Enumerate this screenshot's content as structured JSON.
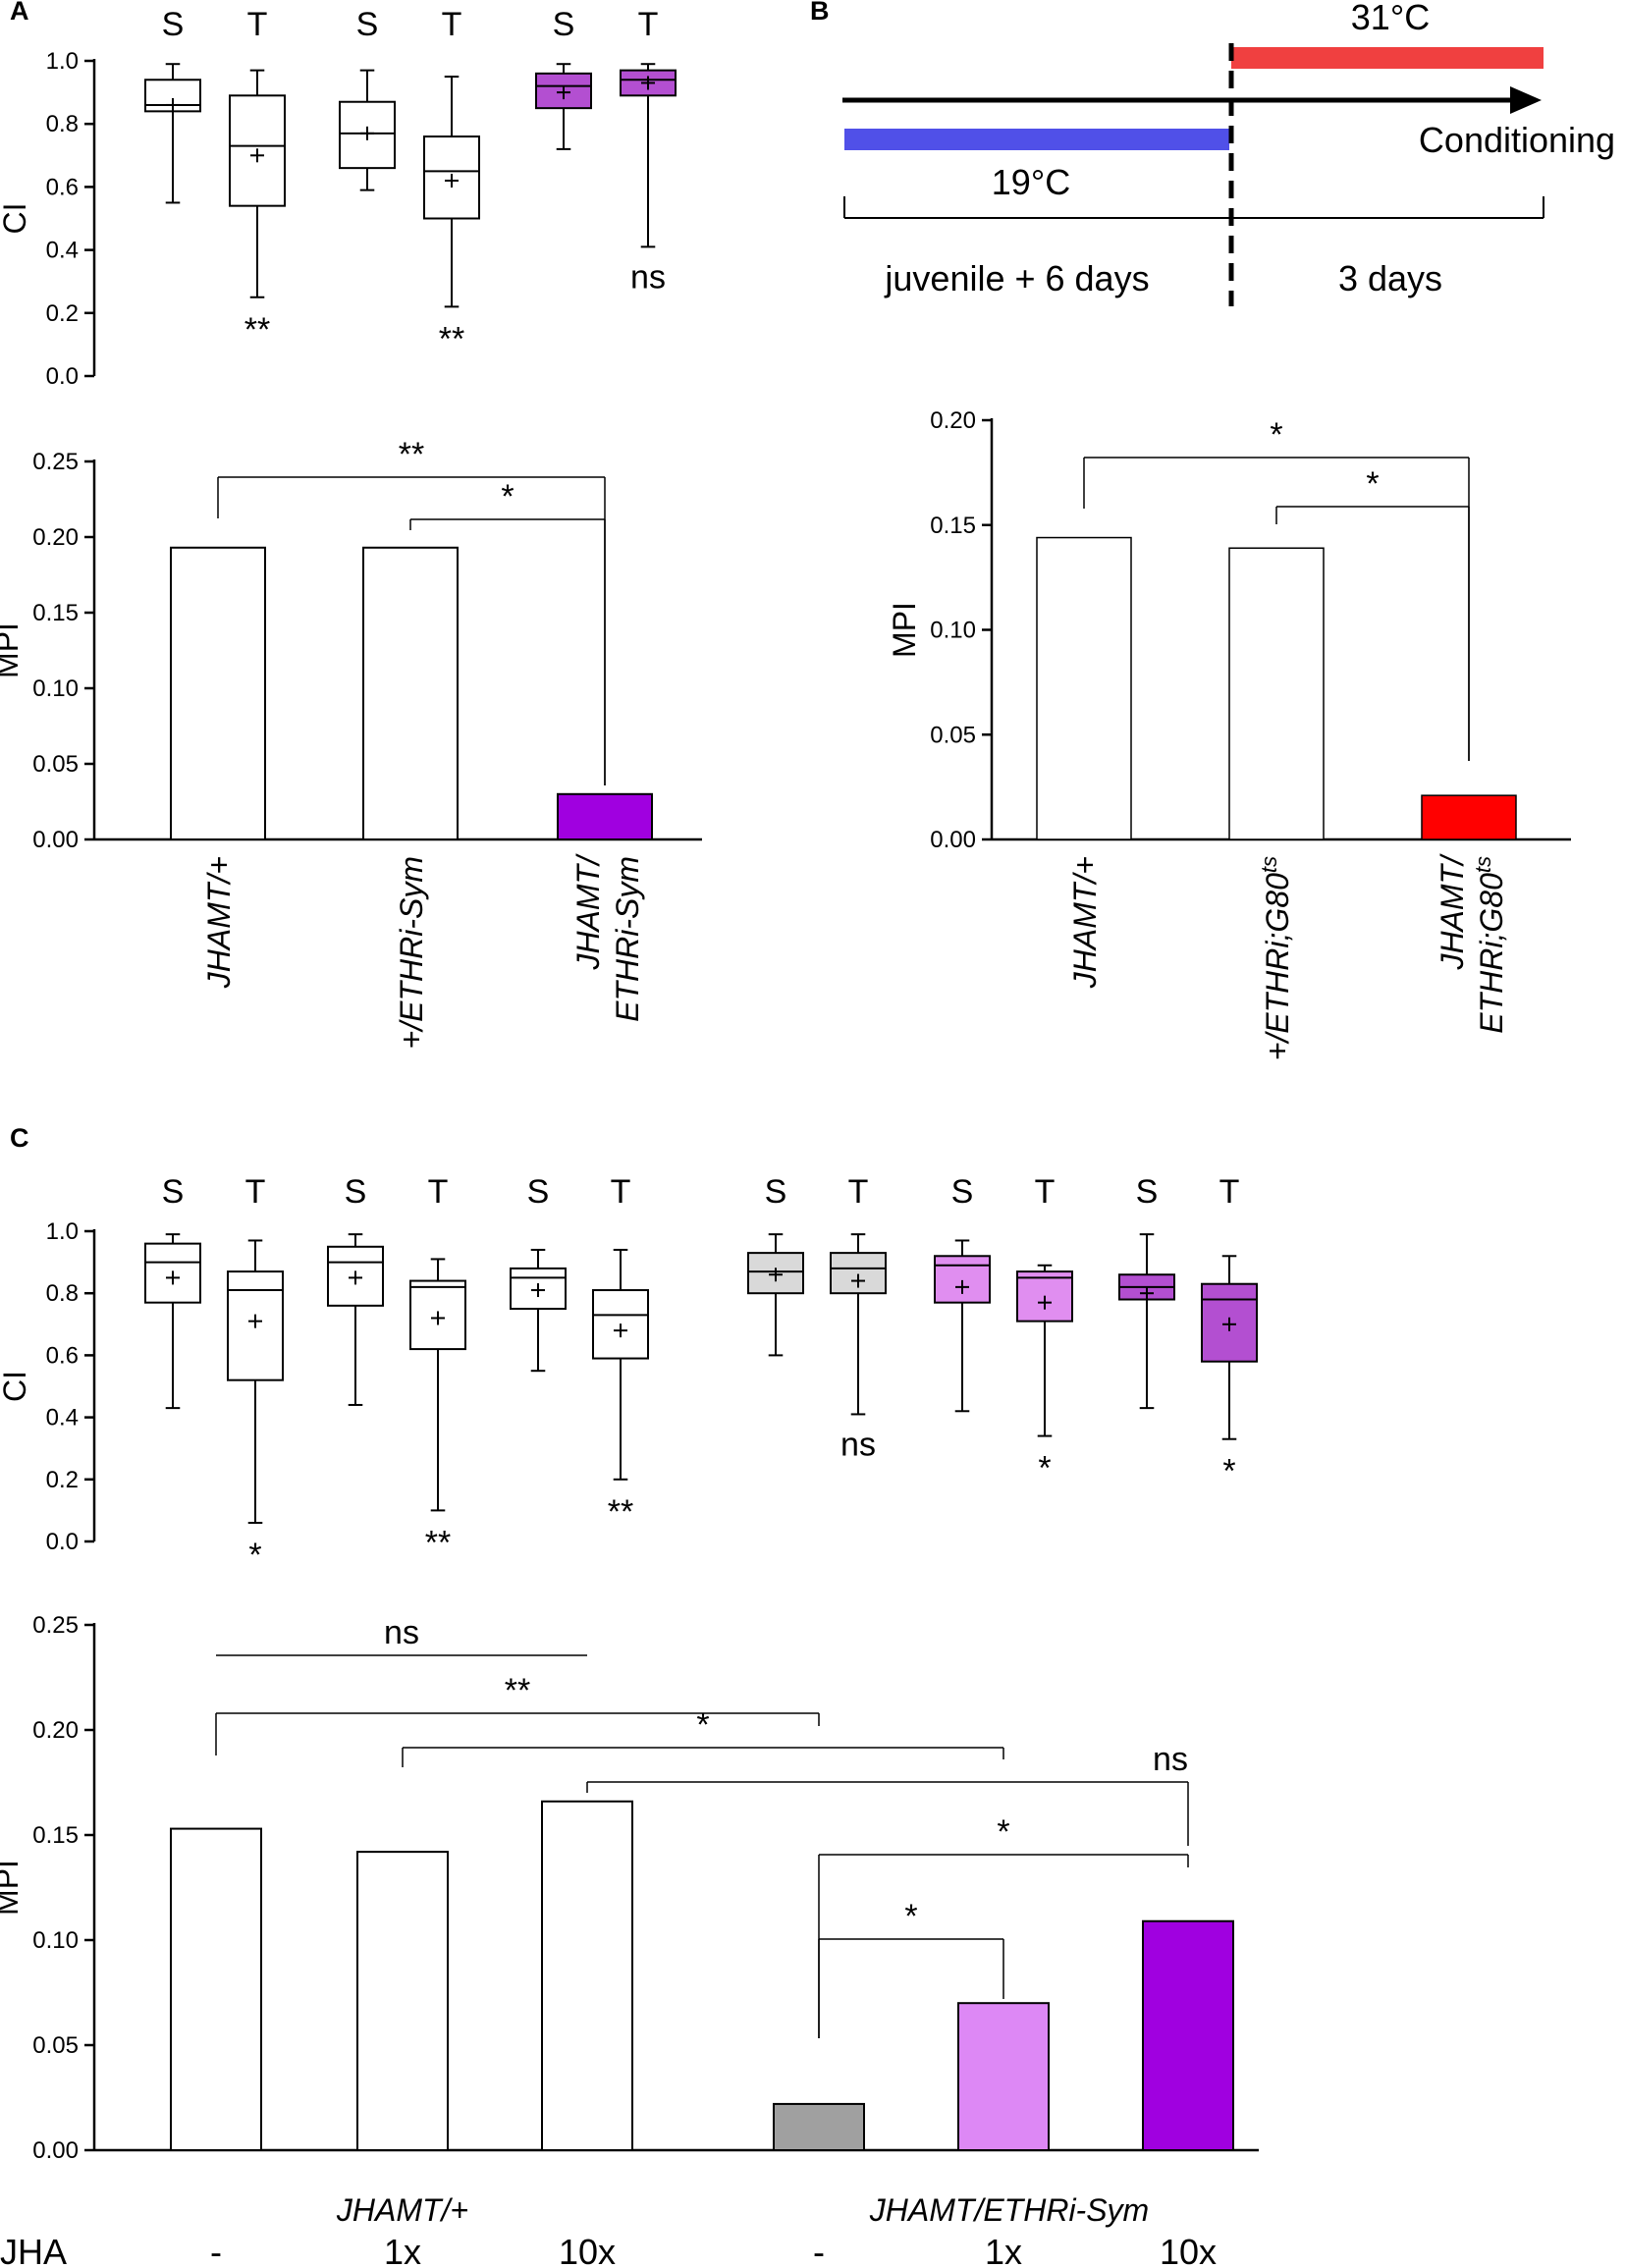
{
  "chart_data": [
    {
      "panel": "A",
      "type": "box",
      "ylabel": "CI",
      "ylim": [
        0,
        1
      ],
      "yticks": [
        "0.0",
        "0.2",
        "0.4",
        "0.6",
        "0.8",
        "1.0"
      ],
      "groups": [
        {
          "name": "JHAMT/+",
          "color": "#ffffff",
          "sig": "**",
          "S": {
            "label": "S",
            "min": 0.55,
            "q1": 0.84,
            "median": 0.86,
            "q3": 0.94,
            "max": 0.99,
            "mean": 0.86
          },
          "T": {
            "label": "T",
            "min": 0.25,
            "q1": 0.54,
            "median": 0.73,
            "q3": 0.89,
            "max": 0.97,
            "mean": 0.7
          }
        },
        {
          "name": "+/ETHRi-Sym",
          "color": "#ffffff",
          "sig": "**",
          "S": {
            "label": "S",
            "min": 0.59,
            "q1": 0.66,
            "median": 0.77,
            "q3": 0.87,
            "max": 0.97,
            "mean": 0.77
          },
          "T": {
            "label": "T",
            "min": 0.22,
            "q1": 0.5,
            "median": 0.65,
            "q3": 0.76,
            "max": 0.95,
            "mean": 0.62
          }
        },
        {
          "name": "JHAMT/ETHRi-Sym",
          "color": "#b34fd1",
          "sig": "ns",
          "S": {
            "label": "S",
            "min": 0.72,
            "q1": 0.85,
            "median": 0.92,
            "q3": 0.96,
            "max": 0.99,
            "mean": 0.9
          },
          "T": {
            "label": "T",
            "min": 0.41,
            "q1": 0.89,
            "median": 0.94,
            "q3": 0.97,
            "max": 0.99,
            "mean": 0.93
          }
        }
      ]
    },
    {
      "panel": "A",
      "type": "bar",
      "ylabel": "MPI",
      "ylim": [
        0,
        0.25
      ],
      "yticks": [
        "0.00",
        "0.05",
        "0.10",
        "0.15",
        "0.20",
        "0.25"
      ],
      "categories": [
        "JHAMT/+",
        "+/ETHRi-Sym",
        "JHAMT/ ETHRi-Sym"
      ],
      "values": [
        0.193,
        0.193,
        0.03
      ],
      "colors": [
        "#ffffff",
        "#ffffff",
        "#a000e0"
      ],
      "brackets": [
        {
          "from": 0,
          "to": 2,
          "label": "**"
        },
        {
          "from": 1,
          "to": 2,
          "label": "*"
        }
      ]
    },
    {
      "panel": "B",
      "type": "timeline",
      "phase1_temp": "19°C",
      "phase2_temp": "31°C",
      "arrow_label": "Conditioning",
      "phase1_duration": "juvenile + 6 days",
      "phase2_duration": "3 days",
      "phase1_color": "#5050e8",
      "phase2_color": "#f04040"
    },
    {
      "panel": "B",
      "type": "bar",
      "ylabel": "MPI",
      "ylim": [
        0,
        0.2
      ],
      "yticks": [
        "0.00",
        "0.05",
        "0.10",
        "0.15",
        "0.20"
      ],
      "categories": [
        "JHAMT/+",
        "+/ETHRi;G80ts",
        "JHAMT/ ETHRi;G80ts"
      ],
      "values": [
        0.144,
        0.139,
        0.021
      ],
      "colors": [
        "#ffffff",
        "#ffffff",
        "#ff0000"
      ],
      "brackets": [
        {
          "from": 0,
          "to": 2,
          "label": "*"
        },
        {
          "from": 1,
          "to": 2,
          "label": "*"
        }
      ]
    },
    {
      "panel": "C",
      "type": "box",
      "ylabel": "CI",
      "ylim": [
        0,
        1
      ],
      "yticks": [
        "0.0",
        "0.2",
        "0.4",
        "0.6",
        "0.8",
        "1.0"
      ],
      "groups": [
        {
          "name": "JHAMT/+ -",
          "color": "#ffffff",
          "sig": "*",
          "S": {
            "label": "S",
            "min": 0.43,
            "q1": 0.77,
            "median": 0.9,
            "q3": 0.96,
            "max": 0.99,
            "mean": 0.85
          },
          "T": {
            "label": "T",
            "min": 0.06,
            "q1": 0.52,
            "median": 0.81,
            "q3": 0.87,
            "max": 0.97,
            "mean": 0.71
          }
        },
        {
          "name": "JHAMT/+ 1x",
          "color": "#ffffff",
          "sig": "**",
          "S": {
            "label": "S",
            "min": 0.44,
            "q1": 0.76,
            "median": 0.9,
            "q3": 0.95,
            "max": 0.99,
            "mean": 0.85
          },
          "T": {
            "label": "T",
            "min": 0.1,
            "q1": 0.62,
            "median": 0.82,
            "q3": 0.84,
            "max": 0.91,
            "mean": 0.72
          }
        },
        {
          "name": "JHAMT/+ 10x",
          "color": "#ffffff",
          "sig": "**",
          "S": {
            "label": "S",
            "min": 0.55,
            "q1": 0.75,
            "median": 0.85,
            "q3": 0.88,
            "max": 0.94,
            "mean": 0.81
          },
          "T": {
            "label": "T",
            "min": 0.2,
            "q1": 0.59,
            "median": 0.73,
            "q3": 0.81,
            "max": 0.94,
            "mean": 0.68
          }
        },
        {
          "name": "JHAMT/ETHRi-Sym -",
          "color": "#d9d9d9",
          "sig": "ns",
          "S": {
            "label": "S",
            "min": 0.6,
            "q1": 0.8,
            "median": 0.87,
            "q3": 0.93,
            "max": 0.99,
            "mean": 0.86
          },
          "T": {
            "label": "T",
            "min": 0.41,
            "q1": 0.8,
            "median": 0.88,
            "q3": 0.93,
            "max": 0.99,
            "mean": 0.84
          }
        },
        {
          "name": "JHAMT/ETHRi-Sym 1x",
          "color": "#e08ef0",
          "sig": "*",
          "S": {
            "label": "S",
            "min": 0.42,
            "q1": 0.77,
            "median": 0.89,
            "q3": 0.92,
            "max": 0.97,
            "mean": 0.82
          },
          "T": {
            "label": "T",
            "min": 0.34,
            "q1": 0.71,
            "median": 0.85,
            "q3": 0.87,
            "max": 0.89,
            "mean": 0.77
          }
        },
        {
          "name": "JHAMT/ETHRi-Sym 10x",
          "color": "#b34fd1",
          "sig": "*",
          "S": {
            "label": "S",
            "min": 0.43,
            "q1": 0.78,
            "median": 0.82,
            "q3": 0.86,
            "max": 0.99,
            "mean": 0.8
          },
          "T": {
            "label": "T",
            "min": 0.33,
            "q1": 0.58,
            "median": 0.78,
            "q3": 0.83,
            "max": 0.92,
            "mean": 0.7
          }
        }
      ]
    },
    {
      "panel": "C",
      "type": "bar",
      "ylabel": "MPI",
      "ylim": [
        0,
        0.25
      ],
      "yticks": [
        "0.00",
        "0.05",
        "0.10",
        "0.15",
        "0.20",
        "0.25"
      ],
      "categories": [
        "JHAMT/+ -",
        "JHAMT/+ 1x",
        "JHAMT/+ 10x",
        "JHAMT/ETHRi-Sym -",
        "JHAMT/ETHRi-Sym 1x",
        "JHAMT/ETHRi-Sym 10x"
      ],
      "values": [
        0.153,
        0.142,
        0.166,
        0.022,
        0.07,
        0.109
      ],
      "colors": [
        "#ffffff",
        "#ffffff",
        "#ffffff",
        "#a0a0a0",
        "#dd88f5",
        "#a000e0"
      ],
      "group_labels": [
        "JHAMT/+",
        "JHAMT/ETHRi-Sym"
      ],
      "treatment_label": "JHA",
      "treatments": [
        "-",
        "1x",
        "10x",
        "-",
        "1x",
        "10x"
      ],
      "brackets": [
        {
          "from": 0,
          "to": 2,
          "label": "ns",
          "style": "line"
        },
        {
          "from": 0,
          "to": 3,
          "label": "**"
        },
        {
          "from": 1,
          "to": 4,
          "label": "*"
        },
        {
          "from": 2,
          "to": 5,
          "label": "ns"
        },
        {
          "from": 3,
          "to": 5,
          "label": "*"
        },
        {
          "from": 3,
          "to": 4,
          "label": "*"
        }
      ]
    }
  ],
  "panel_labels": [
    "A",
    "B",
    "C"
  ]
}
